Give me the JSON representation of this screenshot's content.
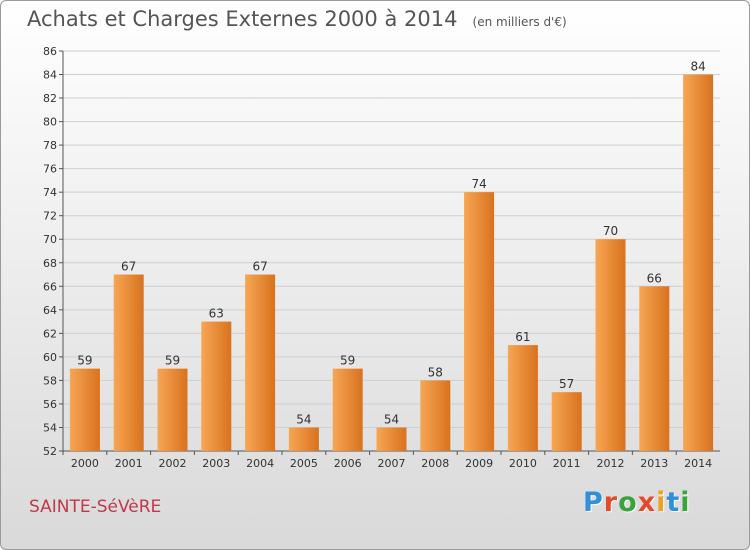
{
  "title": "Achats et Charges Externes 2000 à 2014",
  "unit": "(en milliers d'€)",
  "commune": "SAINTE-SéVèRE",
  "brand": {
    "letters": [
      "P",
      "r",
      "o",
      "x",
      "i",
      "t",
      "i"
    ],
    "colors": [
      "#2f8fd8",
      "#e4482d",
      "#3aa43a",
      "#e4482d",
      "#f0a020",
      "#2f8fd8",
      "#3aa43a"
    ]
  },
  "colors": {
    "bar_light": "#f7a654",
    "bar_dark": "#d8721e",
    "grid": "#cfcfcf"
  },
  "chart_data": {
    "type": "bar",
    "categories": [
      "2000",
      "2001",
      "2002",
      "2003",
      "2004",
      "2005",
      "2006",
      "2007",
      "2008",
      "2009",
      "2010",
      "2011",
      "2012",
      "2013",
      "2014"
    ],
    "values": [
      59,
      67,
      59,
      63,
      67,
      54,
      59,
      54,
      58,
      74,
      61,
      57,
      70,
      66,
      84
    ],
    "ylim": [
      52,
      86
    ],
    "yticks": [
      52,
      54,
      56,
      58,
      60,
      62,
      64,
      66,
      68,
      70,
      72,
      74,
      76,
      78,
      80,
      82,
      84,
      86
    ],
    "grid": true,
    "legend": "none"
  }
}
